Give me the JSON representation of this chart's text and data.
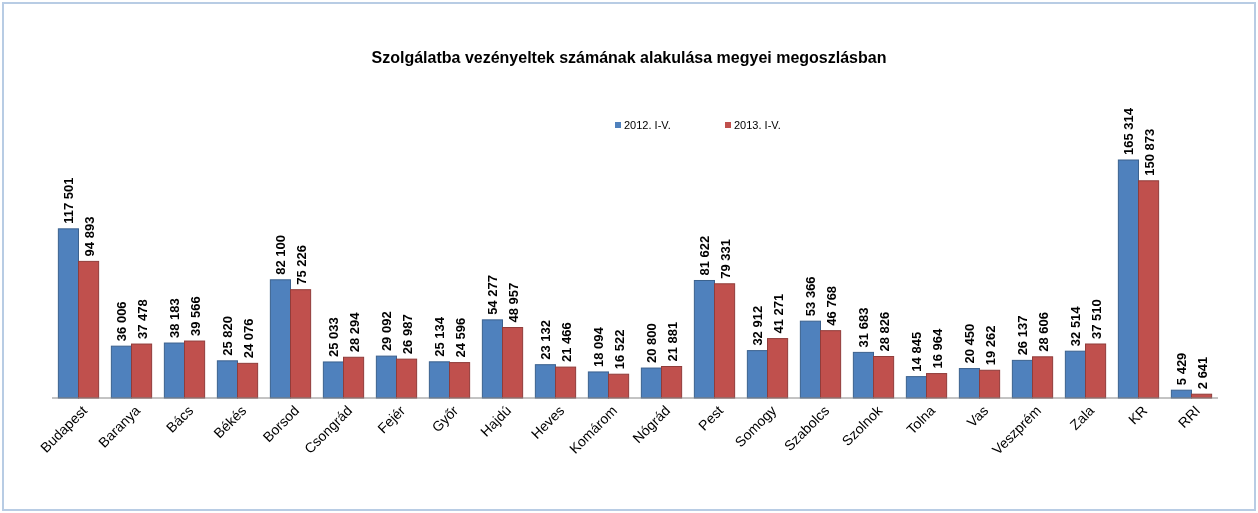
{
  "chart_data": {
    "type": "bar",
    "title": "Szolgálatba vezényeltek  számának alakulása megyei megoszlásban",
    "categories": [
      "Budapest",
      "Baranya",
      "Bács",
      "Békés",
      "Borsod",
      "Csongrád",
      "Fejér",
      "Győr",
      "Hajdú",
      "Heves",
      "Komárom",
      "Nógrád",
      "Pest",
      "Somogy",
      "Szabolcs",
      "Szolnok",
      "Tolna",
      "Vas",
      "Veszprém",
      "Zala",
      "KR",
      "RRI"
    ],
    "series": [
      {
        "name": "2012. I-V.",
        "color": "#4f81bd",
        "values": [
          117501,
          36006,
          38183,
          25820,
          82100,
          25033,
          29092,
          25134,
          54277,
          23132,
          18094,
          20800,
          81622,
          32912,
          53366,
          31683,
          14845,
          20450,
          26137,
          32514,
          165314,
          5429
        ],
        "value_labels": [
          "117 501",
          "36 006",
          "38 183",
          "25 820",
          "82 100",
          "25 033",
          "29 092",
          "25 134",
          "54 277",
          "23 132",
          "18 094",
          "20 800",
          "81 622",
          "32 912",
          "53 366",
          "31 683",
          "14 845",
          "20 450",
          "26 137",
          "32 514",
          "165 314",
          "5 429"
        ]
      },
      {
        "name": "2013. I-V.",
        "color": "#c0504d",
        "values": [
          94893,
          37478,
          39566,
          24076,
          75226,
          28294,
          26987,
          24596,
          48957,
          21466,
          16522,
          21881,
          79331,
          41271,
          46768,
          28826,
          16964,
          19262,
          28606,
          37510,
          150873,
          2641
        ],
        "value_labels": [
          "94 893",
          "37 478",
          "39 566",
          "24 076",
          "75 226",
          "28 294",
          "26 987",
          "24 596",
          "48 957",
          "21 466",
          "16 522",
          "21 881",
          "79 331",
          "41 271",
          "46 768",
          "28 826",
          "16 964",
          "19 262",
          "28 606",
          "37 510",
          "150 873",
          "2 641"
        ]
      }
    ],
    "legend": "top",
    "grid": false
  }
}
